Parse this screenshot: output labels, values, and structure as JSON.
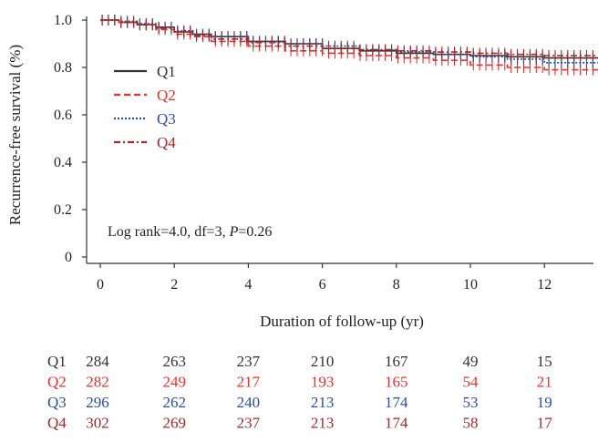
{
  "chart_data": {
    "type": "line",
    "title": "",
    "xlabel": "Duration of follow-up (yr)",
    "ylabel": "Recurrence-free survival (%)",
    "xlim": [
      0,
      13.5
    ],
    "ylim": [
      0,
      1.0
    ],
    "x_ticks": [
      0,
      2,
      4,
      6,
      8,
      10,
      12
    ],
    "y_ticks": [
      0,
      0.2,
      0.4,
      0.6,
      0.8,
      1.0
    ],
    "y_tick_labels": [
      "0",
      "0.2",
      "0.4",
      "0.6",
      "0.8",
      "1.0"
    ],
    "grid": false,
    "legend_position": "left",
    "annotation": {
      "text": "Log rank=4.0, df=3, ",
      "p_label": "P",
      "p_value": "=0.26"
    },
    "series": [
      {
        "name": "Q1",
        "color": "#333333",
        "dash": "solid",
        "x": [
          0,
          0.5,
          1,
          1.5,
          2,
          2.5,
          3,
          4,
          5,
          6,
          7,
          8,
          9,
          10,
          11,
          12,
          13.5
        ],
        "y": [
          1.0,
          0.99,
          0.98,
          0.97,
          0.95,
          0.94,
          0.93,
          0.91,
          0.9,
          0.88,
          0.87,
          0.86,
          0.855,
          0.85,
          0.845,
          0.84,
          0.84
        ]
      },
      {
        "name": "Q2",
        "color": "#e8322e",
        "dash": "dashed",
        "x": [
          0,
          0.5,
          1,
          1.5,
          2,
          2.5,
          3,
          4,
          5,
          6,
          7,
          8,
          9,
          10,
          11,
          12,
          13.5
        ],
        "y": [
          1.0,
          0.99,
          0.98,
          0.96,
          0.94,
          0.93,
          0.91,
          0.89,
          0.87,
          0.86,
          0.85,
          0.84,
          0.83,
          0.81,
          0.8,
          0.79,
          0.79
        ]
      },
      {
        "name": "Q3",
        "color": "#2c4f9c",
        "dash": "dotted",
        "x": [
          0,
          0.5,
          1,
          1.5,
          2,
          2.5,
          3,
          4,
          5,
          6,
          7,
          8,
          9,
          10,
          11,
          12,
          13.5
        ],
        "y": [
          1.0,
          0.995,
          0.985,
          0.97,
          0.955,
          0.94,
          0.93,
          0.91,
          0.9,
          0.89,
          0.875,
          0.865,
          0.855,
          0.845,
          0.835,
          0.82,
          0.82
        ]
      },
      {
        "name": "Q4",
        "color": "#a52a2a",
        "dash": "dashdot",
        "x": [
          0,
          0.5,
          1,
          1.5,
          2,
          2.5,
          3,
          4,
          5,
          6,
          7,
          8,
          9,
          10,
          11,
          12,
          13.5
        ],
        "y": [
          1.0,
          0.99,
          0.98,
          0.965,
          0.95,
          0.935,
          0.92,
          0.905,
          0.89,
          0.88,
          0.875,
          0.87,
          0.865,
          0.86,
          0.855,
          0.85,
          0.85
        ]
      }
    ],
    "risk_table": {
      "times": [
        0,
        2,
        4,
        6,
        8,
        10,
        12
      ],
      "rows": [
        {
          "name": "Q1",
          "color": "#333333",
          "values": [
            284,
            263,
            237,
            210,
            167,
            49,
            15
          ]
        },
        {
          "name": "Q2",
          "color": "#e8322e",
          "values": [
            282,
            249,
            217,
            193,
            165,
            54,
            21
          ]
        },
        {
          "name": "Q3",
          "color": "#2c4f9c",
          "values": [
            296,
            262,
            240,
            213,
            174,
            53,
            19
          ]
        },
        {
          "name": "Q4",
          "color": "#a52a2a",
          "values": [
            302,
            269,
            237,
            213,
            174,
            58,
            17
          ]
        }
      ]
    }
  }
}
